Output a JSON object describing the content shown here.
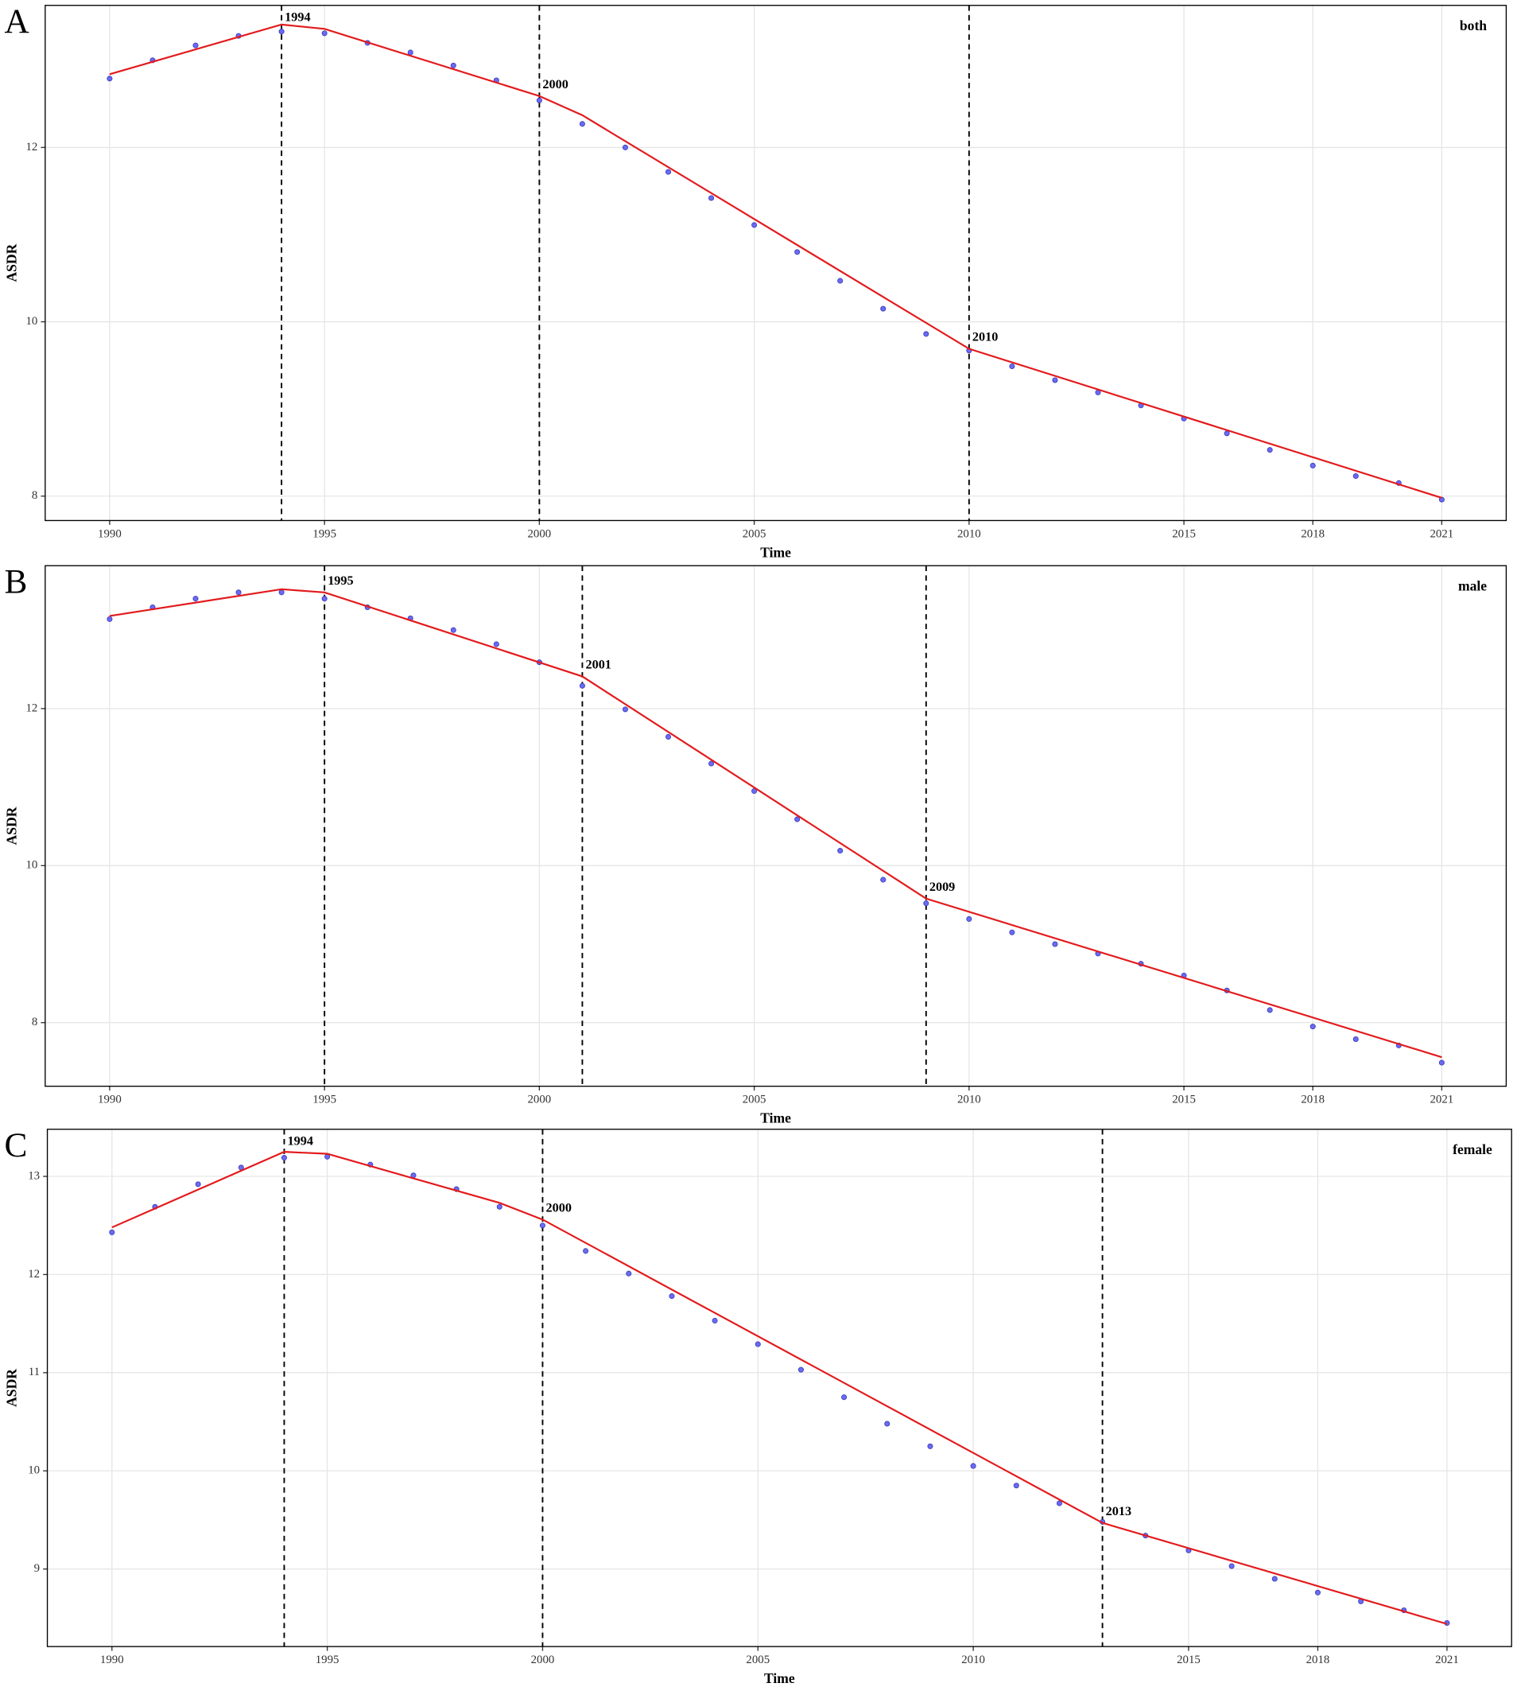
{
  "chart_data": [
    {
      "type": "line",
      "panel_label": "A",
      "title": "both",
      "xlabel": "Time",
      "ylabel": "ASDR",
      "x": [
        1990,
        1991,
        1992,
        1993,
        1994,
        1995,
        1996,
        1997,
        1998,
        1999,
        2000,
        2001,
        2002,
        2003,
        2004,
        2005,
        2006,
        2007,
        2008,
        2009,
        2010,
        2011,
        2012,
        2013,
        2014,
        2015,
        2016,
        2017,
        2018,
        2019,
        2020,
        2021
      ],
      "series": [
        {
          "marker": "point",
          "color": "#6a6af5",
          "values": [
            12.79,
            13.0,
            13.17,
            13.28,
            13.33,
            13.31,
            13.2,
            13.09,
            12.94,
            12.77,
            12.54,
            12.27,
            12.0,
            11.72,
            11.42,
            11.11,
            10.8,
            10.47,
            10.15,
            9.86,
            9.67,
            9.49,
            9.33,
            9.19,
            9.04,
            8.89,
            8.72,
            8.53,
            8.35,
            8.23,
            8.15,
            7.96
          ]
        },
        {
          "marker": "line",
          "color": "#e31a1c",
          "x": [
            1990,
            1994,
            1995,
            2000,
            2001,
            2010,
            2021
          ],
          "values": [
            12.84,
            13.41,
            13.36,
            12.59,
            12.37,
            9.69,
            7.98
          ]
        }
      ],
      "joinpoints": [
        1994,
        2000,
        2010
      ],
      "xlim": [
        1988.5,
        2022.5
      ],
      "xticks": [
        1990,
        1995,
        2000,
        2005,
        2010,
        2015,
        2018,
        2021
      ],
      "ylim": [
        7.72,
        13.63
      ],
      "yticks": [
        8,
        10,
        12
      ],
      "grid": true
    },
    {
      "type": "line",
      "panel_label": "B",
      "title": "male",
      "xlabel": "Time",
      "ylabel": "ASDR",
      "x": [
        1990,
        1991,
        1992,
        1993,
        1994,
        1995,
        1996,
        1997,
        1998,
        1999,
        2000,
        2001,
        2002,
        2003,
        2004,
        2005,
        2006,
        2007,
        2008,
        2009,
        2010,
        2011,
        2012,
        2013,
        2014,
        2015,
        2016,
        2017,
        2018,
        2019,
        2020,
        2021
      ],
      "series": [
        {
          "marker": "point",
          "color": "#6a6af5",
          "values": [
            13.14,
            13.29,
            13.4,
            13.48,
            13.48,
            13.4,
            13.29,
            13.15,
            13.0,
            12.82,
            12.59,
            12.29,
            11.99,
            11.64,
            11.3,
            10.95,
            10.59,
            10.19,
            9.82,
            9.52,
            9.32,
            9.15,
            9.0,
            8.88,
            8.75,
            8.6,
            8.41,
            8.16,
            7.95,
            7.79,
            7.71,
            7.49
          ]
        },
        {
          "marker": "line",
          "color": "#e31a1c",
          "x": [
            1990,
            1994,
            1995,
            2001,
            2009,
            2021
          ],
          "values": [
            13.18,
            13.52,
            13.48,
            12.41,
            9.58,
            7.56
          ]
        }
      ],
      "joinpoints": [
        1995,
        2001,
        2009
      ],
      "xlim": [
        1988.5,
        2022.5
      ],
      "xticks": [
        1990,
        1995,
        2000,
        2005,
        2010,
        2015,
        2018,
        2021
      ],
      "ylim": [
        7.19,
        13.82
      ],
      "yticks": [
        8,
        10,
        12
      ],
      "grid": true
    },
    {
      "type": "line",
      "panel_label": "C",
      "title": "female",
      "xlabel": "Time",
      "ylabel": "ASDR",
      "x": [
        1990,
        1991,
        1992,
        1993,
        1994,
        1995,
        1996,
        1997,
        1998,
        1999,
        2000,
        2001,
        2002,
        2003,
        2004,
        2005,
        2006,
        2007,
        2008,
        2009,
        2010,
        2011,
        2012,
        2013,
        2014,
        2015,
        2016,
        2017,
        2018,
        2019,
        2020,
        2021
      ],
      "series": [
        {
          "marker": "point",
          "color": "#6a6af5",
          "values": [
            12.43,
            12.69,
            12.92,
            13.09,
            13.19,
            13.2,
            13.12,
            13.01,
            12.87,
            12.69,
            12.5,
            12.24,
            12.01,
            11.78,
            11.53,
            11.29,
            11.03,
            10.75,
            10.48,
            10.25,
            10.05,
            9.85,
            9.67,
            9.48,
            9.34,
            9.19,
            9.03,
            8.9,
            8.76,
            8.67,
            8.58,
            8.45
          ]
        },
        {
          "marker": "line",
          "color": "#e31a1c",
          "x": [
            1990,
            1994,
            1995,
            1999,
            2000,
            2013,
            2021
          ],
          "values": [
            12.48,
            13.25,
            13.23,
            12.73,
            12.56,
            9.47,
            8.44
          ]
        }
      ],
      "joinpoints": [
        1994,
        2000,
        2013
      ],
      "xlim": [
        1988.5,
        2022.5
      ],
      "xticks": [
        1990,
        1995,
        2000,
        2005,
        2010,
        2015,
        2018,
        2021
      ],
      "ylim": [
        8.21,
        13.48
      ],
      "yticks": [
        9,
        10,
        11,
        12,
        13
      ],
      "grid": true
    }
  ]
}
